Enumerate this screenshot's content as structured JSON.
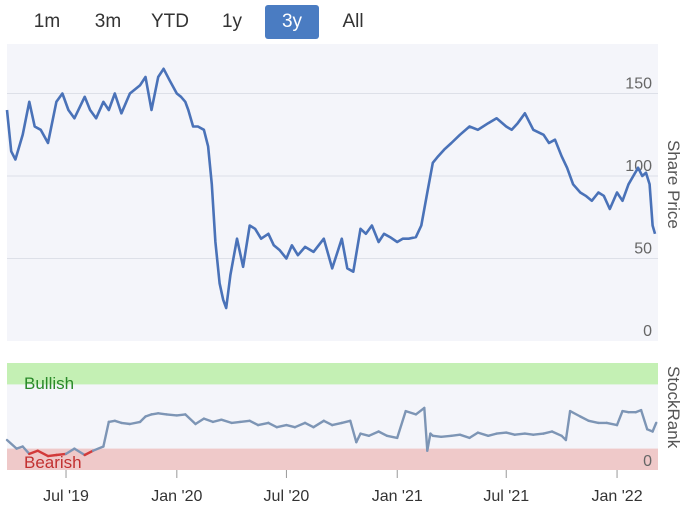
{
  "range_selector": {
    "buttons": [
      "1m",
      "3m",
      "YTD",
      "1y",
      "3y",
      "All"
    ],
    "active": "3y"
  },
  "colors": {
    "price_line": "#4a72b8",
    "rank_line": "#7d95b5",
    "rank_bearish_line": "#d23a3a",
    "bullish_band": "#c4f0b4",
    "bearish_band": "#efc9c9",
    "bullish_text": "#2a8a2a",
    "bearish_text": "#c23030",
    "plot_bg": "#f4f5fa",
    "grid": "#dde0e8"
  },
  "chart_data": [
    {
      "type": "line",
      "ylabel": "Share Price",
      "ylim": [
        0,
        180
      ],
      "yticks": [
        0,
        50,
        100,
        150
      ],
      "xlim": [
        "2019-03-25",
        "2022-03-10"
      ],
      "xticks": [
        "2019-07-01",
        "2020-01-01",
        "2020-07-01",
        "2021-01-01",
        "2021-07-01",
        "2022-01-01"
      ],
      "xtick_labels": [
        "Jul '19",
        "Jan '20",
        "Jul '20",
        "Jan '21",
        "Jul '21",
        "Jan '22"
      ],
      "series": [
        {
          "x": [
            "2019-03-25",
            "2019-04-01",
            "2019-04-08",
            "2019-04-20",
            "2019-05-01",
            "2019-05-10",
            "2019-05-20",
            "2019-06-01",
            "2019-06-15",
            "2019-06-25",
            "2019-07-05",
            "2019-07-15",
            "2019-08-01",
            "2019-08-10",
            "2019-08-20",
            "2019-09-01",
            "2019-09-10",
            "2019-09-20",
            "2019-10-01",
            "2019-10-15",
            "2019-11-01",
            "2019-11-10",
            "2019-11-20",
            "2019-12-01",
            "2019-12-10",
            "2019-12-20",
            "2020-01-01",
            "2020-01-08",
            "2020-01-15",
            "2020-01-20",
            "2020-01-28",
            "2020-02-05",
            "2020-02-15",
            "2020-02-22",
            "2020-02-28",
            "2020-03-05",
            "2020-03-12",
            "2020-03-18",
            "2020-03-23",
            "2020-03-30",
            "2020-04-10",
            "2020-04-20",
            "2020-05-01",
            "2020-05-10",
            "2020-05-20",
            "2020-06-01",
            "2020-06-10",
            "2020-06-20",
            "2020-07-01",
            "2020-07-10",
            "2020-07-20",
            "2020-08-01",
            "2020-08-15",
            "2020-09-01",
            "2020-09-15",
            "2020-10-01",
            "2020-10-10",
            "2020-10-20",
            "2020-11-01",
            "2020-11-10",
            "2020-11-20",
            "2020-12-01",
            "2020-12-10",
            "2020-12-20",
            "2021-01-01",
            "2021-01-10",
            "2021-01-20",
            "2021-02-01",
            "2021-02-10",
            "2021-02-20",
            "2021-03-01",
            "2021-03-10",
            "2021-03-20",
            "2021-04-01",
            "2021-04-15",
            "2021-05-01",
            "2021-05-15",
            "2021-06-01",
            "2021-06-15",
            "2021-07-01",
            "2021-07-10",
            "2021-07-20",
            "2021-08-01",
            "2021-08-15",
            "2021-09-01",
            "2021-09-10",
            "2021-09-20",
            "2021-10-01",
            "2021-10-10",
            "2021-10-20",
            "2021-11-01",
            "2021-11-10",
            "2021-11-20",
            "2021-12-01",
            "2021-12-10",
            "2021-12-20",
            "2022-01-01",
            "2022-01-10",
            "2022-01-20",
            "2022-01-28",
            "2022-02-05",
            "2022-02-12",
            "2022-02-18",
            "2022-02-24",
            "2022-03-01",
            "2022-03-05"
          ],
          "y": [
            140,
            115,
            110,
            125,
            145,
            130,
            128,
            120,
            145,
            150,
            140,
            135,
            148,
            140,
            135,
            145,
            140,
            150,
            138,
            150,
            155,
            160,
            140,
            160,
            165,
            158,
            150,
            148,
            145,
            140,
            130,
            130,
            128,
            118,
            95,
            60,
            35,
            25,
            20,
            40,
            62,
            45,
            70,
            68,
            62,
            65,
            58,
            55,
            50,
            58,
            52,
            57,
            54,
            62,
            44,
            62,
            44,
            42,
            68,
            65,
            70,
            60,
            65,
            63,
            60,
            62,
            62,
            63,
            70,
            90,
            108,
            112,
            116,
            120,
            125,
            130,
            128,
            132,
            135,
            130,
            128,
            132,
            138,
            128,
            125,
            120,
            122,
            112,
            105,
            95,
            90,
            88,
            85,
            90,
            88,
            80,
            90,
            85,
            95,
            100,
            105,
            100,
            102,
            95,
            70,
            65
          ]
        }
      ]
    },
    {
      "type": "line",
      "ylabel": "StockRank",
      "ylim": [
        0,
        100
      ],
      "yticks": [
        0
      ],
      "band_labels": {
        "bullish": "Bullish",
        "bearish": "Bearish"
      },
      "bands": {
        "bullish": [
          80,
          100
        ],
        "bearish": [
          0,
          20
        ]
      },
      "xlim": [
        "2019-03-25",
        "2022-03-10"
      ],
      "series": [
        {
          "x": [
            "2019-03-25",
            "2019-04-10",
            "2019-04-20",
            "2019-05-01",
            "2019-05-15",
            "2019-06-01",
            "2019-06-15",
            "2019-07-01",
            "2019-07-15",
            "2019-08-01",
            "2019-08-15",
            "2019-09-01",
            "2019-09-10",
            "2019-09-20",
            "2019-10-01",
            "2019-10-15",
            "2019-11-01",
            "2019-11-10",
            "2019-11-20",
            "2019-12-01",
            "2019-12-15",
            "2020-01-01",
            "2020-01-15",
            "2020-02-01",
            "2020-02-15",
            "2020-03-01",
            "2020-03-15",
            "2020-04-01",
            "2020-04-15",
            "2020-05-01",
            "2020-05-15",
            "2020-06-01",
            "2020-06-15",
            "2020-07-01",
            "2020-07-15",
            "2020-08-01",
            "2020-08-15",
            "2020-09-01",
            "2020-09-15",
            "2020-10-01",
            "2020-10-15",
            "2020-10-25",
            "2020-11-01",
            "2020-11-15",
            "2020-12-01",
            "2020-12-15",
            "2021-01-01",
            "2021-01-15",
            "2021-02-01",
            "2021-02-15",
            "2021-02-20",
            "2021-02-25",
            "2021-03-01",
            "2021-03-15",
            "2021-04-01",
            "2021-04-15",
            "2021-05-01",
            "2021-05-15",
            "2021-06-01",
            "2021-06-15",
            "2021-07-01",
            "2021-07-15",
            "2021-08-01",
            "2021-08-15",
            "2021-09-01",
            "2021-09-15",
            "2021-10-01",
            "2021-10-08",
            "2021-10-15",
            "2021-11-01",
            "2021-11-15",
            "2021-12-01",
            "2021-12-15",
            "2022-01-01",
            "2022-01-10",
            "2022-01-20",
            "2022-02-01",
            "2022-02-10",
            "2022-02-20",
            "2022-03-01",
            "2022-03-07"
          ],
          "y": [
            28,
            20,
            22,
            15,
            18,
            13,
            14,
            15,
            20,
            14,
            18,
            22,
            45,
            46,
            44,
            43,
            45,
            50,
            52,
            53,
            52,
            51,
            52,
            43,
            48,
            45,
            47,
            44,
            45,
            46,
            42,
            44,
            40,
            42,
            40,
            44,
            40,
            46,
            42,
            44,
            46,
            26,
            34,
            32,
            36,
            32,
            30,
            55,
            52,
            58,
            18,
            34,
            32,
            31,
            32,
            33,
            30,
            35,
            32,
            34,
            35,
            33,
            34,
            33,
            34,
            36,
            32,
            28,
            55,
            50,
            46,
            44,
            44,
            42,
            55,
            54,
            54,
            56,
            38,
            36,
            44
          ],
          "bearish_below": 20
        }
      ]
    }
  ]
}
